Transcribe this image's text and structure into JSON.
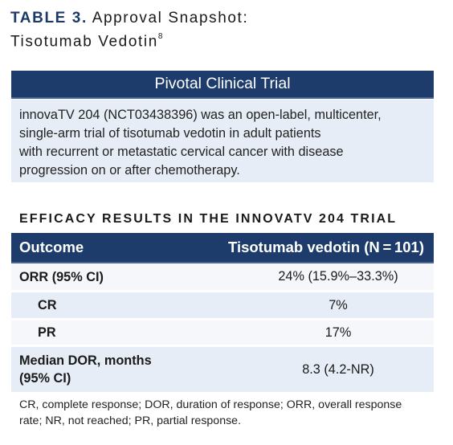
{
  "header": {
    "table_label": "TABLE 3.",
    "title_line1": "Approval Snapshot:",
    "title_line2": "Tisotumab Vedotin",
    "ref_superscript": "8"
  },
  "pivotal": {
    "heading": "Pivotal Clinical Trial",
    "lines": [
      "innovaTV 204 (NCT03438396) was an open-label, multicenter,",
      "single-arm trial of tisotumab vedotin in adult patients",
      "with recurrent or metastatic cervical cancer with disease",
      "progression on or after chemotherapy."
    ]
  },
  "efficacy": {
    "title": "EFFICACY RESULTS IN THE INNOVATV 204 TRIAL",
    "columns": [
      "Outcome",
      "Tisotumab vedotin (N = 101)"
    ],
    "rows": [
      {
        "outcome": "ORR (95% CI)",
        "value": "24% (15.9%–33.3%)"
      },
      {
        "outcome": "CR",
        "value": "7%"
      },
      {
        "outcome": "PR",
        "value": "17%"
      },
      {
        "outcome_line1": "Median DOR, months",
        "outcome_line2": "(95% CI)",
        "value": "8.3 (4.2-NR)"
      }
    ]
  },
  "footnote": {
    "line1": "CR, complete response; DOR, duration of response; ORR, overall response",
    "line2": "rate; NR, not reached; PR, partial response."
  }
}
